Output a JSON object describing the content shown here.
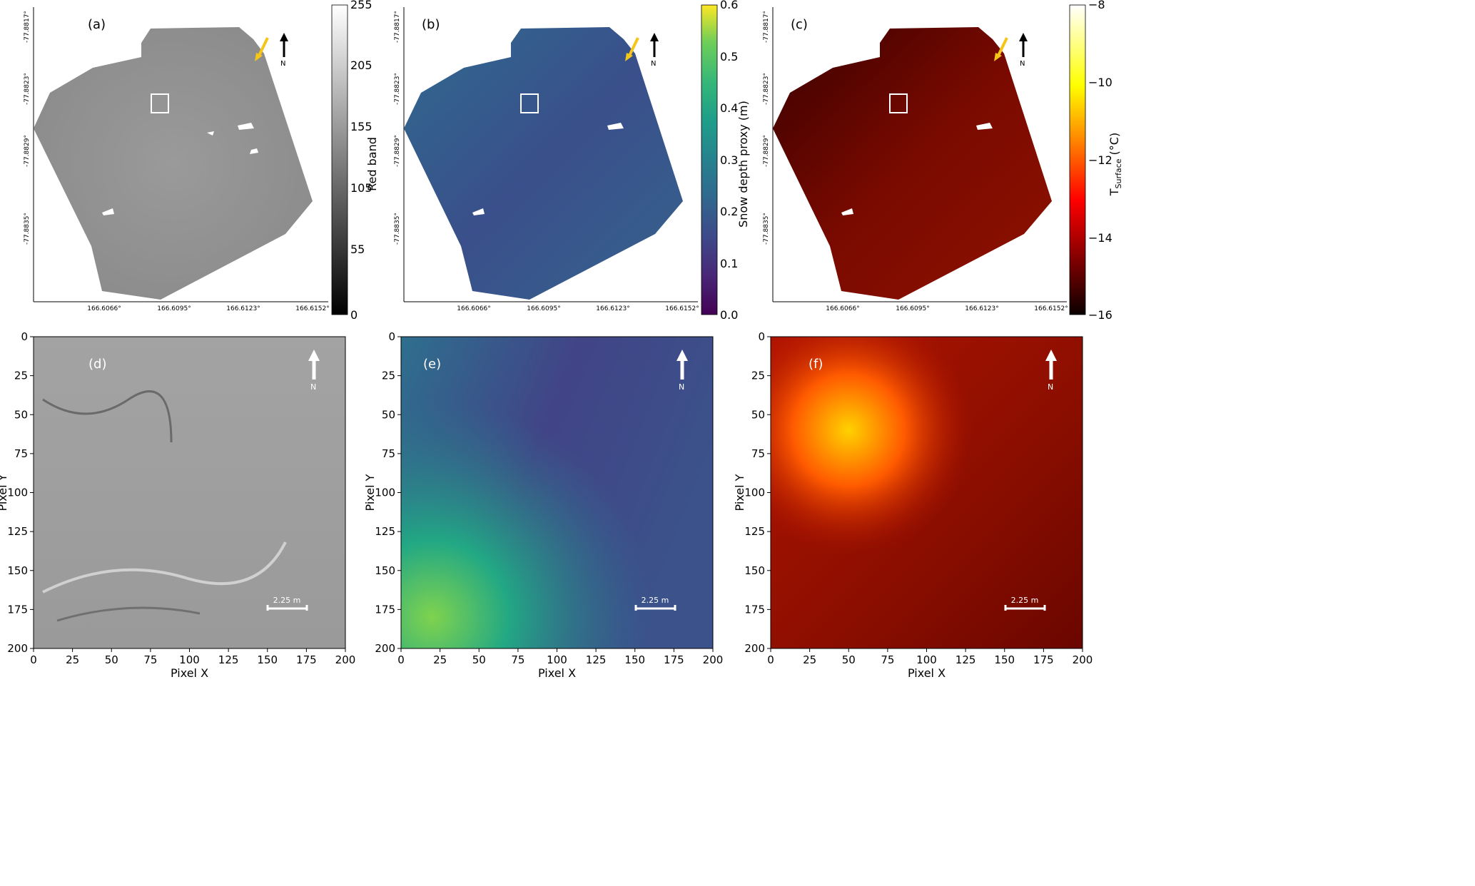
{
  "figure": {
    "panels": [
      {
        "label": "(a)",
        "colorbar": {
          "title": "Red band",
          "ticks": [
            "0",
            "55",
            "105",
            "155",
            "205",
            "255"
          ]
        }
      },
      {
        "label": "(b)",
        "colorbar": {
          "title": "Snow depth proxy (m)",
          "ticks": [
            "0.0",
            "0.1",
            "0.2",
            "0.3",
            "0.4",
            "0.5",
            "0.6"
          ]
        }
      },
      {
        "label": "(c)",
        "colorbar": {
          "title_main": "T",
          "title_sub": "Surface",
          "title_unit": " (°C)",
          "ticks": [
            "−16",
            "−14",
            "−12",
            "−10",
            "−8"
          ]
        }
      },
      {
        "label": "(d)"
      },
      {
        "label": "(e)"
      },
      {
        "label": "(f)"
      }
    ],
    "north_label": "N",
    "scale_bar_label": "2.25 m",
    "map_lat_ticks": [
      "-77.8817°",
      "-77.8823°",
      "-77.8829°",
      "-77.8835°"
    ],
    "map_lon_ticks": [
      "166.6066°",
      "166.6095°",
      "166.6123°",
      "166.6152°"
    ],
    "pixel_ticks": [
      "0",
      "25",
      "50",
      "75",
      "100",
      "125",
      "150",
      "175",
      "200"
    ],
    "xlabel": "Pixel X",
    "ylabel": "Pixel Y"
  },
  "chart_data": [
    {
      "type": "heatmap",
      "panel": "(a)",
      "colorbar_label": "Red band",
      "colorbar_range": [
        0,
        255
      ],
      "colormap": "gray",
      "x_ticks": [
        166.6066,
        166.6095,
        166.6123,
        166.6152
      ],
      "y_ticks": [
        -77.8817,
        -77.8823,
        -77.8829,
        -77.8835
      ]
    },
    {
      "type": "heatmap",
      "panel": "(b)",
      "colorbar_label": "Snow depth proxy (m)",
      "colorbar_range": [
        0.0,
        0.6
      ],
      "colormap": "viridis",
      "x_ticks": [
        166.6066,
        166.6095,
        166.6123,
        166.6152
      ],
      "y_ticks": [
        -77.8817,
        -77.8823,
        -77.8829,
        -77.8835
      ]
    },
    {
      "type": "heatmap",
      "panel": "(c)",
      "colorbar_label": "T Surface (°C)",
      "colorbar_range": [
        -16,
        -8
      ],
      "colormap": "hot",
      "x_ticks": [
        166.6066,
        166.6095,
        166.6123,
        166.6152
      ],
      "y_ticks": [
        -77.8817,
        -77.8823,
        -77.8829,
        -77.8835
      ]
    },
    {
      "type": "heatmap",
      "panel": "(d)",
      "xlabel": "Pixel X",
      "ylabel": "Pixel Y",
      "xlim": [
        0,
        200
      ],
      "ylim": [
        200,
        0
      ]
    },
    {
      "type": "heatmap",
      "panel": "(e)",
      "xlabel": "Pixel X",
      "ylabel": "Pixel Y",
      "xlim": [
        0,
        200
      ],
      "ylim": [
        200,
        0
      ]
    },
    {
      "type": "heatmap",
      "panel": "(f)",
      "xlabel": "Pixel X",
      "ylabel": "Pixel Y",
      "xlim": [
        0,
        200
      ],
      "ylim": [
        200,
        0
      ]
    }
  ]
}
